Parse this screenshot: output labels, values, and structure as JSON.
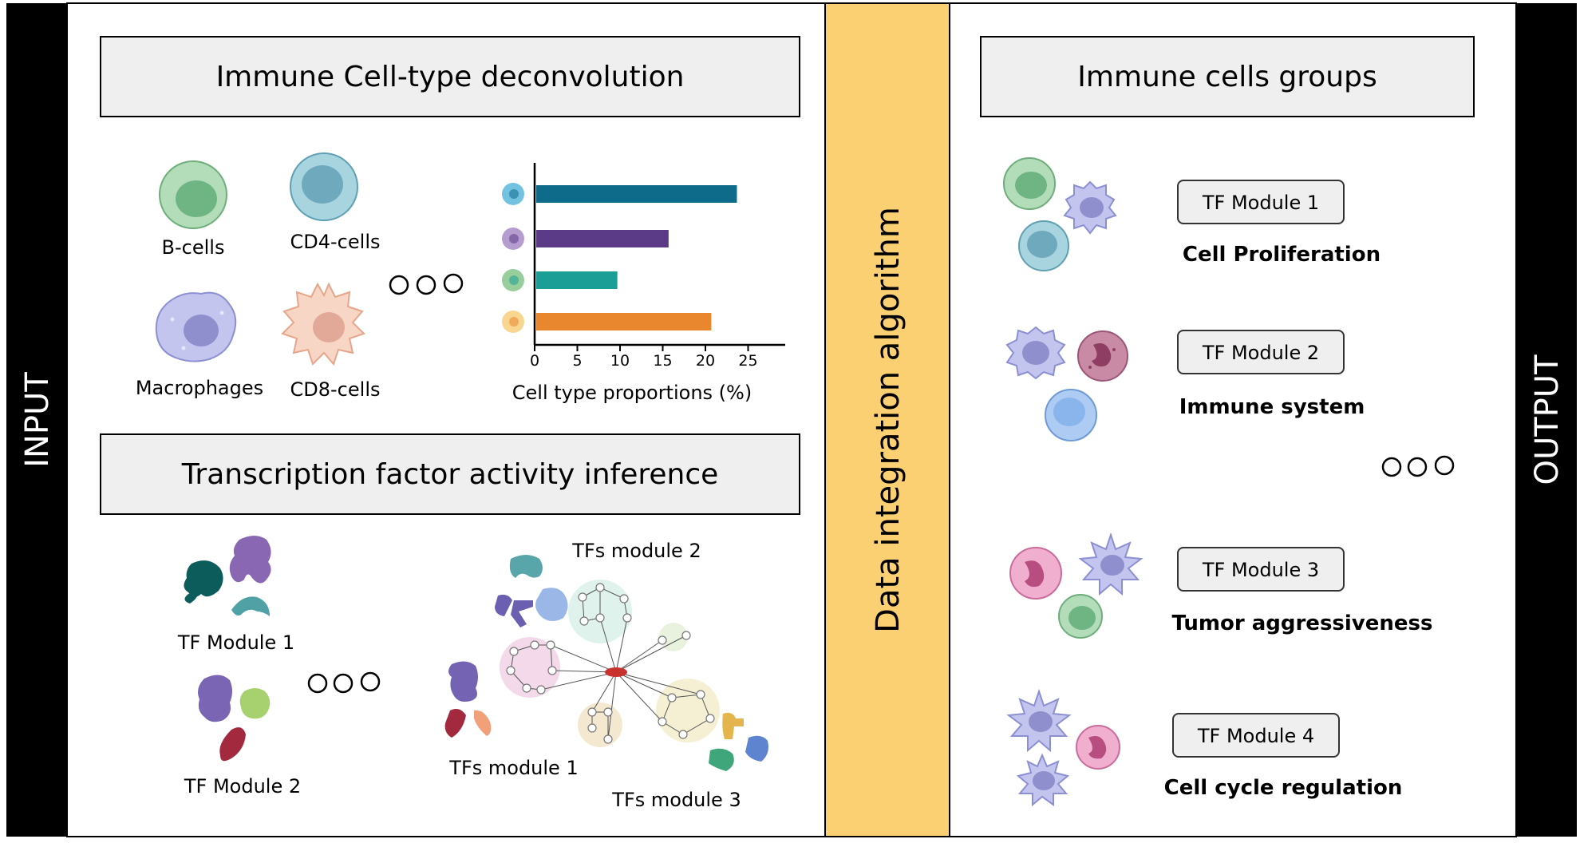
{
  "sidebars": {
    "input_label": "INPUT",
    "output_label": "OUTPUT"
  },
  "center": {
    "label": "Data integration algorithm"
  },
  "deconvolution": {
    "title": "Immune Cell-type deconvolution",
    "cells": [
      {
        "label": "B-cells",
        "color": "#7cc08a"
      },
      {
        "label": "CD4-cells",
        "color": "#7fb9c9"
      },
      {
        "label": "Macrophages",
        "color": "#a6a8e0"
      },
      {
        "label": "CD8-cells",
        "color": "#f3bfa8"
      }
    ]
  },
  "chart_data": {
    "type": "bar",
    "orientation": "horizontal",
    "xlabel": "Cell type proportions (%)",
    "xlim": [
      0,
      29
    ],
    "xticks": [
      0,
      5,
      10,
      15,
      20,
      25
    ],
    "values": [
      23.5,
      15.5,
      9.5,
      20.5
    ],
    "colors": [
      "#0e6b8a",
      "#5b3a87",
      "#1b9e95",
      "#e8872e"
    ],
    "marker_colors": [
      "#5bb7dd",
      "#a88cc7",
      "#85c58a",
      "#f7cf7c"
    ]
  },
  "tf_inference": {
    "title": "Transcription factor activity inference",
    "module1_label": "TF Module 1",
    "module2_label": "TF Module 2",
    "network_labels": {
      "module1": "TFs module 1",
      "module2": "TFs module 2",
      "module3": "TFs module 3"
    }
  },
  "groups": {
    "title": "Immune cells groups",
    "items": [
      {
        "module": "TF Module 1",
        "function": "Cell Proliferation"
      },
      {
        "module": "TF Module 2",
        "function": "Immune system"
      },
      {
        "module": "TF Module 3",
        "function": "Tumor aggressiveness"
      },
      {
        "module": "TF Module 4",
        "function": "Cell cycle regulation"
      }
    ]
  }
}
